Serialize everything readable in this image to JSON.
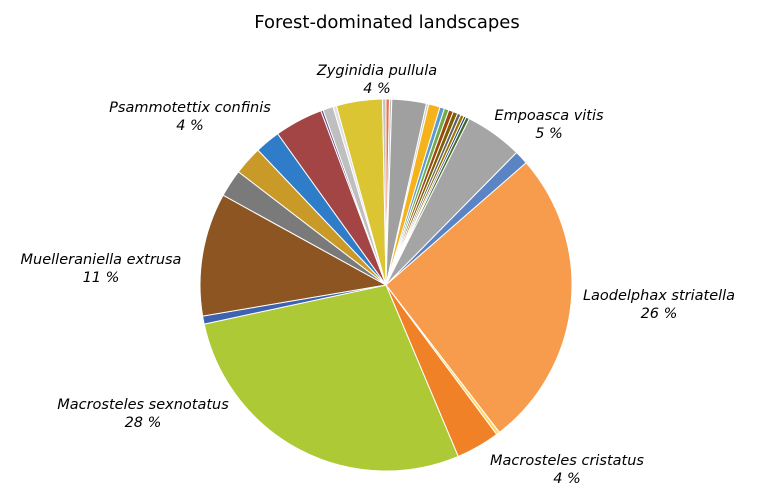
{
  "chart_data": {
    "type": "pie",
    "title": "Forest-dominated landscapes",
    "start_angle_deg": 0,
    "direction": "clockwise",
    "slices": [
      {
        "value": 0.3,
        "color": "#e8734a"
      },
      {
        "value": 0.2,
        "color": "#bdbdbd"
      },
      {
        "value": 3.0,
        "color": "#a0a0a0"
      },
      {
        "value": 0.2,
        "color": "#c9c9c9"
      },
      {
        "value": 1.0,
        "color": "#f5b21b"
      },
      {
        "value": 0.4,
        "color": "#5b9bd5"
      },
      {
        "value": 0.4,
        "color": "#70ad47"
      },
      {
        "value": 0.4,
        "color": "#9e480e"
      },
      {
        "value": 0.4,
        "color": "#7f6000"
      },
      {
        "value": 0.3,
        "color": "#636363"
      },
      {
        "value": 0.3,
        "color": "#997300"
      },
      {
        "value": 0.2,
        "color": "#264478"
      },
      {
        "value": 0.3,
        "color": "#43682b"
      },
      {
        "value": 5.0,
        "color": "#a5a5a5",
        "name": "Empoasca vitis",
        "pct": "5 %"
      },
      {
        "value": 1.2,
        "color": "#5b84c4"
      },
      {
        "value": 26.0,
        "color": "#f79b4d",
        "name": "Laodelphax striatella",
        "pct": "26 %"
      },
      {
        "value": 0.3,
        "color": "#ffd966"
      },
      {
        "value": 3.8,
        "color": "#f08127",
        "name": "Macrosteles cristatus",
        "pct": "4 %"
      },
      {
        "value": 28.0,
        "color": "#adc936",
        "name": "Macrosteles sexnotatus",
        "pct": "28 %"
      },
      {
        "value": 0.7,
        "color": "#3d63b0"
      },
      {
        "value": 10.7,
        "color": "#8c5522",
        "name": "Muelleraniella extrusa",
        "pct": "11 %"
      },
      {
        "value": 2.4,
        "color": "#7a7a7a"
      },
      {
        "value": 2.5,
        "color": "#c99a28"
      },
      {
        "value": 2.2,
        "color": "#2f7dc9"
      },
      {
        "value": 4.2,
        "color": "#a34545",
        "name": "Psammotettix confinis",
        "pct": "4 %"
      },
      {
        "value": 0.2,
        "color": "#6b4f8a"
      },
      {
        "value": 0.9,
        "color": "#bfbfbf"
      },
      {
        "value": 0.3,
        "color": "#e0e0e0"
      },
      {
        "value": 4.0,
        "color": "#dbc532",
        "name": "Zyginidia pullula",
        "pct": "4 %"
      },
      {
        "value": 0.3,
        "color": "#c3c3c3"
      }
    ],
    "labels_order": [
      "Zyginidia pullula",
      "Psammotettix confinis",
      "Empoasca vitis",
      "Muelleraniella extrusa",
      "Laodelphax striatella",
      "Macrosteles sexnotatus",
      "Macrosteles cristatus"
    ]
  }
}
